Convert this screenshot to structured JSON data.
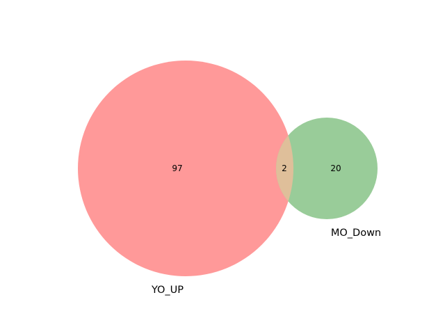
{
  "diagram": {
    "type": "venn2",
    "sets": [
      {
        "label": "YO_UP",
        "color": "#ff9999"
      },
      {
        "label": "MO_Down",
        "color": "#99cc99"
      }
    ],
    "overlap_color": "#dfbf9a",
    "regions": {
      "only_a": "97",
      "both": "2",
      "only_b": "20"
    }
  }
}
